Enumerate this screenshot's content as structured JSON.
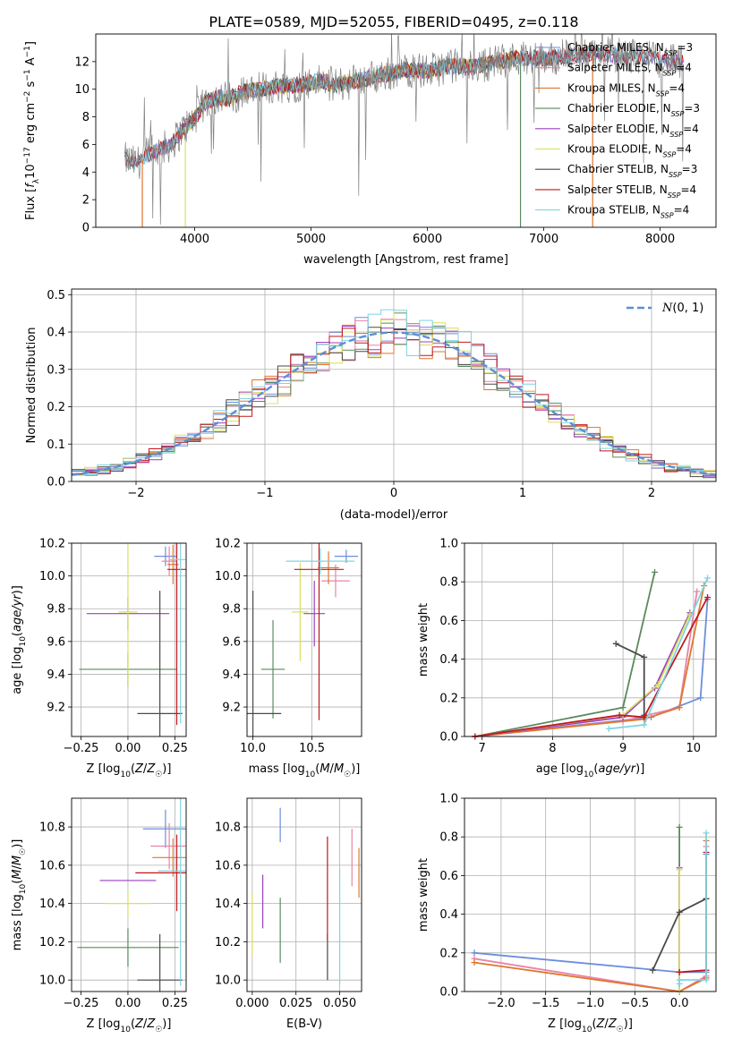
{
  "title": "PLATE=0589, MJD=52055, FIBERID=0495, z=0.118",
  "colors": {
    "Chabrier MILES": "#6b8fdc",
    "Salpeter MILES": "#e884a8",
    "Kroupa MILES": "#e0762e",
    "Chabrier ELODIE": "#5a8a5e",
    "Salpeter ELODIE": "#9b3fbf",
    "Kroupa ELODIE": "#d8e060",
    "Chabrier STELIB": "#4a4a4a",
    "Salpeter STELIB": "#c0181c",
    "Kroupa STELIB": "#7fd4e0"
  },
  "chart_data": [
    {
      "id": "spectrum",
      "type": "line",
      "xlabel": "wavelength [Angstrom, rest frame]",
      "ylabel": "Flux [f_λ10^-17 erg cm^-2 s^-1 A^-1]",
      "xlim": [
        3150,
        8480
      ],
      "ylim": [
        0,
        14
      ],
      "xticks": [
        4000,
        5000,
        6000,
        7000,
        8000
      ],
      "yticks": [
        0,
        2,
        4,
        6,
        8,
        10,
        12
      ],
      "observed_color": "#808080",
      "observed_anchors": [
        [
          3400,
          4.9
        ],
        [
          3500,
          4.6
        ],
        [
          3600,
          5.3
        ],
        [
          3700,
          5.6
        ],
        [
          3800,
          6.0
        ],
        [
          3900,
          7.1
        ],
        [
          4000,
          7.9
        ],
        [
          4100,
          9.1
        ],
        [
          4200,
          9.4
        ],
        [
          4300,
          9.3
        ],
        [
          4400,
          9.8
        ],
        [
          4500,
          9.9
        ],
        [
          4700,
          10.2
        ],
        [
          4900,
          10.3
        ],
        [
          5100,
          10.6
        ],
        [
          5200,
          10.3
        ],
        [
          5500,
          10.8
        ],
        [
          5800,
          11.4
        ],
        [
          6000,
          11.3
        ],
        [
          6200,
          11.7
        ],
        [
          6400,
          11.6
        ],
        [
          6600,
          12.0
        ],
        [
          6800,
          12.3
        ],
        [
          7000,
          12.2
        ],
        [
          7200,
          12.4
        ],
        [
          7400,
          12.6
        ],
        [
          7600,
          12.5
        ],
        [
          7800,
          12.4
        ],
        [
          8000,
          12.1
        ],
        [
          8200,
          11.9
        ]
      ],
      "legend": [
        {
          "label": "Chabrier MILES",
          "nssp": "3"
        },
        {
          "label": "Salpeter MILES",
          "nssp": "4"
        },
        {
          "label": "Kroupa MILES",
          "nssp": "4"
        },
        {
          "label": "Chabrier ELODIE",
          "nssp": "3"
        },
        {
          "label": "Salpeter ELODIE",
          "nssp": "4"
        },
        {
          "label": "Kroupa ELODIE",
          "nssp": "4"
        },
        {
          "label": "Chabrier STELIB",
          "nssp": "3"
        },
        {
          "label": "Salpeter STELIB",
          "nssp": "4"
        },
        {
          "label": "Kroupa STELIB",
          "nssp": "4"
        }
      ],
      "model_ranges": [
        [
          3550,
          7420
        ],
        [
          3550,
          7420
        ],
        [
          3550,
          7420
        ],
        [
          3920,
          6800
        ],
        [
          3400,
          8200
        ],
        [
          3920,
          6800
        ],
        [
          3400,
          8200
        ],
        [
          3400,
          8200
        ],
        [
          3400,
          8200
        ]
      ]
    },
    {
      "id": "residuals",
      "type": "area",
      "xlabel": "(data-model)/error",
      "ylabel": "Normed distribution",
      "xlim": [
        -2.5,
        2.5
      ],
      "ylim": [
        0,
        0.515
      ],
      "xticks": [
        -2,
        -1,
        0,
        1,
        2
      ],
      "yticks": [
        0.0,
        0.1,
        0.2,
        0.3,
        0.4,
        0.5
      ],
      "bin_width": 0.1,
      "gaussian_label": "N(0,1)",
      "gaussian_color": "#5b8fd4",
      "legend_position": "top-right"
    },
    {
      "id": "age_vs_Z",
      "type": "scatter",
      "xlabel": "Z [log10(Z/Z☉)]",
      "ylabel": "age [log10(age/yr)]",
      "xlim": [
        -0.3,
        0.31
      ],
      "ylim": [
        9.02,
        10.2
      ],
      "xticks": [
        -0.25,
        0.0,
        0.25
      ],
      "yticks": [
        9.2,
        9.4,
        9.6,
        9.8,
        10.0,
        10.2
      ],
      "points": [
        {
          "model": "Chabrier MILES",
          "x": 0.2,
          "y": 10.12,
          "xerr": 0.06,
          "yerr": 0.06
        },
        {
          "model": "Salpeter MILES",
          "x": 0.22,
          "y": 10.09,
          "xerr": 0.04,
          "yerr": 0.09
        },
        {
          "model": "Kroupa MILES",
          "x": 0.24,
          "y": 10.07,
          "xerr": 0.03,
          "yerr": 0.12
        },
        {
          "model": "Chabrier ELODIE",
          "x": 0.0,
          "y": 9.43,
          "xerr": 0.26,
          "yerr": 0.1
        },
        {
          "model": "Salpeter ELODIE",
          "x": 0.0,
          "y": 9.77,
          "xerr": 0.22,
          "yerr": 0.1
        },
        {
          "model": "Kroupa ELODIE",
          "x": 0.0,
          "y": 9.78,
          "xerr": 0.05,
          "yerr": 0.45
        },
        {
          "model": "Chabrier STELIB",
          "x": 0.17,
          "y": 9.16,
          "xerr": 0.12,
          "yerr": 0.75
        },
        {
          "model": "Salpeter STELIB",
          "x": 0.26,
          "y": 10.04,
          "xerr": 0.05,
          "yerr": 0.95
        },
        {
          "model": "Kroupa STELIB",
          "x": 0.28,
          "y": 10.1,
          "xerr": 0.06,
          "yerr": 1.0
        }
      ]
    },
    {
      "id": "age_vs_mass",
      "type": "scatter",
      "xlabel": "mass [log10(M/M☉)]",
      "ylabel": "",
      "xlim": [
        9.95,
        10.92
      ],
      "ylim": [
        9.02,
        10.2
      ],
      "xticks": [
        10.0,
        10.5
      ],
      "yticks": [
        9.2,
        9.4,
        9.6,
        9.8,
        10.0,
        10.2
      ],
      "points": [
        {
          "model": "Chabrier MILES",
          "x": 10.79,
          "y": 10.12,
          "xerr": 0.1,
          "yerr": 0.04
        },
        {
          "model": "Salpeter MILES",
          "x": 10.7,
          "y": 9.97,
          "xerr": 0.12,
          "yerr": 0.1
        },
        {
          "model": "Kroupa MILES",
          "x": 10.64,
          "y": 10.05,
          "xerr": 0.09,
          "yerr": 0.1
        },
        {
          "model": "Chabrier ELODIE",
          "x": 10.17,
          "y": 9.43,
          "xerr": 0.1,
          "yerr": 0.3
        },
        {
          "model": "Salpeter ELODIE",
          "x": 10.52,
          "y": 9.77,
          "xerr": 0.09,
          "yerr": 0.2
        },
        {
          "model": "Kroupa ELODIE",
          "x": 10.4,
          "y": 9.78,
          "xerr": 0.07,
          "yerr": 0.3
        },
        {
          "model": "Chabrier STELIB",
          "x": 10.0,
          "y": 9.16,
          "xerr": 0.24,
          "yerr": 0.75
        },
        {
          "model": "Salpeter STELIB",
          "x": 10.56,
          "y": 10.04,
          "xerr": 0.21,
          "yerr": 0.92
        },
        {
          "model": "Kroupa STELIB",
          "x": 10.57,
          "y": 10.09,
          "xerr": 0.29,
          "yerr": 0.08
        }
      ]
    },
    {
      "id": "weight_vs_age",
      "type": "line",
      "xlabel": "age [log10(age/yr)]",
      "ylabel": "mass weight",
      "xlim": [
        6.75,
        10.32
      ],
      "ylim": [
        0,
        1.0
      ],
      "xticks": [
        7,
        8,
        9,
        10
      ],
      "yticks": [
        0.0,
        0.2,
        0.4,
        0.6,
        0.8,
        1.0
      ],
      "series": [
        {
          "model": "Chabrier MILES",
          "x": [
            6.9,
            9.4,
            10.1,
            10.2
          ],
          "y": [
            0.0,
            0.1,
            0.2,
            0.71
          ]
        },
        {
          "model": "Salpeter MILES",
          "x": [
            6.9,
            9.0,
            9.8,
            10.05
          ],
          "y": [
            0.0,
            0.08,
            0.15,
            0.75
          ]
        },
        {
          "model": "Kroupa MILES",
          "x": [
            6.9,
            9.3,
            9.8,
            10.15
          ],
          "y": [
            0.0,
            0.09,
            0.15,
            0.78
          ]
        },
        {
          "model": "Chabrier ELODIE",
          "x": [
            6.9,
            9.0,
            9.45
          ],
          "y": [
            0.0,
            0.15,
            0.85
          ]
        },
        {
          "model": "Salpeter ELODIE",
          "x": [
            6.9,
            9.0,
            9.45,
            9.95
          ],
          "y": [
            0.0,
            0.1,
            0.25,
            0.64
          ]
        },
        {
          "model": "Kroupa ELODIE",
          "x": [
            6.9,
            9.0,
            9.5,
            9.95
          ],
          "y": [
            0.0,
            0.11,
            0.27,
            0.63
          ]
        },
        {
          "model": "Chabrier STELIB",
          "x": [
            8.9,
            9.3,
            9.3,
            9.3
          ],
          "y": [
            0.48,
            0.41,
            0.11,
            0.1
          ]
        },
        {
          "model": "Salpeter STELIB",
          "x": [
            6.9,
            8.95,
            9.3,
            10.2
          ],
          "y": [
            0.0,
            0.11,
            0.1,
            0.72
          ]
        },
        {
          "model": "Kroupa STELIB",
          "x": [
            8.8,
            9.3,
            10.2
          ],
          "y": [
            0.04,
            0.06,
            0.82
          ]
        }
      ]
    },
    {
      "id": "mass_vs_Z",
      "type": "scatter",
      "xlabel": "Z [log10(Z/Z☉)]",
      "ylabel": "mass [log10(M/M☉)]",
      "xlim": [
        -0.3,
        0.31
      ],
      "ylim": [
        9.94,
        10.95
      ],
      "xticks": [
        -0.25,
        0.0,
        0.25
      ],
      "yticks": [
        10.0,
        10.2,
        10.4,
        10.6,
        10.8
      ],
      "points": [
        {
          "model": "Chabrier MILES",
          "x": 0.2,
          "y": 10.79,
          "xerr": 0.12,
          "yerr": 0.1
        },
        {
          "model": "Salpeter MILES",
          "x": 0.22,
          "y": 10.7,
          "xerr": 0.1,
          "yerr": 0.12
        },
        {
          "model": "Kroupa MILES",
          "x": 0.24,
          "y": 10.64,
          "xerr": 0.11,
          "yerr": 0.1
        },
        {
          "model": "Chabrier ELODIE",
          "x": 0.0,
          "y": 10.17,
          "xerr": 0.27,
          "yerr": 0.1
        },
        {
          "model": "Salpeter ELODIE",
          "x": 0.0,
          "y": 10.52,
          "xerr": 0.15,
          "yerr": 0.0
        },
        {
          "model": "Kroupa ELODIE",
          "x": 0.0,
          "y": 10.4,
          "xerr": 0.12,
          "yerr": 0.07
        },
        {
          "model": "Chabrier STELIB",
          "x": 0.17,
          "y": 10.0,
          "xerr": 0.12,
          "yerr": 0.24
        },
        {
          "model": "Salpeter STELIB",
          "x": 0.26,
          "y": 10.56,
          "xerr": 0.22,
          "yerr": 0.2
        },
        {
          "model": "Kroupa STELIB",
          "x": 0.28,
          "y": 10.57,
          "xerr": 0.12,
          "yerr": 0.6
        }
      ]
    },
    {
      "id": "mass_vs_ebv",
      "type": "scatter",
      "xlabel": "E(B-V)",
      "ylabel": "",
      "xlim": [
        -0.003,
        0.0625
      ],
      "ylim": [
        9.94,
        10.95
      ],
      "xticks": [
        0.0,
        0.025,
        0.05
      ],
      "yticks": [
        10.0,
        10.2,
        10.4,
        10.6,
        10.8
      ],
      "points": [
        {
          "model": "Chabrier MILES",
          "x": 0.016,
          "y": 10.81,
          "xerr": 0.0,
          "yerr": 0.09
        },
        {
          "model": "Salpeter MILES",
          "x": 0.057,
          "y": 10.64,
          "xerr": 0.0,
          "yerr": 0.15
        },
        {
          "model": "Kroupa MILES",
          "x": 0.061,
          "y": 10.56,
          "xerr": 0.0,
          "yerr": 0.13
        },
        {
          "model": "Chabrier ELODIE",
          "x": 0.016,
          "y": 10.26,
          "xerr": 0.0,
          "yerr": 0.17
        },
        {
          "model": "Salpeter ELODIE",
          "x": 0.006,
          "y": 10.41,
          "xerr": 0.0,
          "yerr": 0.14
        },
        {
          "model": "Kroupa ELODIE",
          "x": 0.0,
          "y": 10.29,
          "xerr": 0.0,
          "yerr": 0.16
        },
        {
          "model": "Chabrier STELIB",
          "x": 0.043,
          "y": 10.12,
          "xerr": 0.0,
          "yerr": 0.12
        },
        {
          "model": "Salpeter STELIB",
          "x": 0.043,
          "y": 10.48,
          "xerr": 0.0,
          "yerr": 0.27
        },
        {
          "model": "Kroupa STELIB",
          "x": 0.05,
          "y": 10.28,
          "xerr": 0.0,
          "yerr": 0.3
        }
      ]
    },
    {
      "id": "weight_vs_Z",
      "type": "line",
      "xlabel": "Z [log10(Z/Z☉)]",
      "ylabel": "mass weight",
      "xlim": [
        -2.41,
        0.41
      ],
      "ylim": [
        0,
        1.0
      ],
      "xticks": [
        -2.0,
        -1.5,
        -1.0,
        -0.5,
        0.0
      ],
      "yticks": [
        0.0,
        0.2,
        0.4,
        0.6,
        0.8,
        1.0
      ],
      "series": [
        {
          "model": "Chabrier MILES",
          "x": [
            -2.3,
            0.0,
            0.3,
            0.3
          ],
          "y": [
            0.2,
            0.1,
            0.1,
            0.71
          ]
        },
        {
          "model": "Salpeter MILES",
          "x": [
            -2.3,
            0.0,
            0.3,
            0.3
          ],
          "y": [
            0.17,
            0.0,
            0.08,
            0.75
          ]
        },
        {
          "model": "Kroupa MILES",
          "x": [
            -2.3,
            0.0,
            0.3,
            0.3
          ],
          "y": [
            0.15,
            0.0,
            0.07,
            0.78
          ]
        },
        {
          "model": "Chabrier ELODIE",
          "x": [
            0.0,
            0.0
          ],
          "y": [
            0.0,
            0.85
          ]
        },
        {
          "model": "Salpeter ELODIE",
          "x": [
            0.0,
            0.0
          ],
          "y": [
            0.1,
            0.64
          ]
        },
        {
          "model": "Kroupa ELODIE",
          "x": [
            0.0,
            0.0
          ],
          "y": [
            0.0,
            0.63
          ]
        },
        {
          "model": "Chabrier STELIB",
          "x": [
            -0.3,
            0.0,
            0.3
          ],
          "y": [
            0.11,
            0.41,
            0.48
          ]
        },
        {
          "model": "Salpeter STELIB",
          "x": [
            0.0,
            0.3,
            0.3
          ],
          "y": [
            0.1,
            0.11,
            0.72
          ]
        },
        {
          "model": "Kroupa STELIB",
          "x": [
            0.0,
            0.0,
            0.3,
            0.3
          ],
          "y": [
            0.04,
            0.06,
            0.06,
            0.82
          ]
        }
      ]
    }
  ]
}
